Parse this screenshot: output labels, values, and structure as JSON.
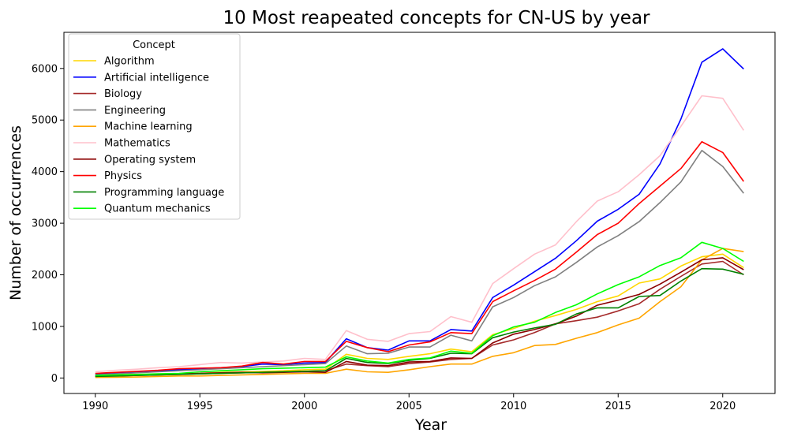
{
  "chart_data": {
    "type": "line",
    "title": "10 Most reapeated concepts for CN-US by year",
    "xlabel": "Year",
    "ylabel": "Number of occurrences",
    "xlim": [
      1988.5,
      2022.5
    ],
    "ylim": [
      -300,
      6700
    ],
    "xticks": [
      1990,
      1995,
      2000,
      2005,
      2010,
      2015,
      2020
    ],
    "yticks": [
      0,
      1000,
      2000,
      3000,
      4000,
      5000,
      6000
    ],
    "grid": false,
    "legend": {
      "title": "Concept",
      "placement": "top-left"
    },
    "x": [
      1990,
      1991,
      1992,
      1993,
      1994,
      1995,
      1996,
      1997,
      1998,
      1999,
      2000,
      2001,
      2002,
      2003,
      2004,
      2005,
      2006,
      2007,
      2008,
      2009,
      2010,
      2011,
      2012,
      2013,
      2014,
      2015,
      2016,
      2017,
      2018,
      2019,
      2020,
      2021
    ],
    "series": [
      {
        "name": "Algorithm",
        "color": "#FFD700",
        "values": [
          40,
          50,
          60,
          70,
          80,
          90,
          110,
          120,
          130,
          140,
          160,
          170,
          460,
          380,
          360,
          420,
          470,
          560,
          510,
          840,
          960,
          1100,
          1210,
          1330,
          1480,
          1590,
          1840,
          1920,
          2170,
          2350,
          2400,
          2140
        ]
      },
      {
        "name": "Artificial intelligence",
        "color": "#0000FF",
        "values": [
          80,
          100,
          120,
          140,
          160,
          180,
          200,
          220,
          270,
          260,
          290,
          300,
          760,
          590,
          540,
          720,
          720,
          940,
          910,
          1560,
          1800,
          2060,
          2320,
          2660,
          3040,
          3270,
          3560,
          4150,
          5020,
          6120,
          6380,
          5990
        ]
      },
      {
        "name": "Biology",
        "color": "#A52A2A",
        "values": [
          30,
          40,
          50,
          60,
          70,
          80,
          90,
          100,
          110,
          120,
          130,
          140,
          270,
          240,
          220,
          280,
          310,
          360,
          380,
          640,
          740,
          880,
          1050,
          1110,
          1180,
          1300,
          1440,
          1720,
          1970,
          2210,
          2260,
          2000
        ]
      },
      {
        "name": "Engineering",
        "color": "#808080",
        "values": [
          60,
          80,
          100,
          120,
          140,
          160,
          180,
          200,
          220,
          240,
          260,
          280,
          620,
          470,
          480,
          600,
          600,
          830,
          720,
          1380,
          1560,
          1790,
          1960,
          2240,
          2540,
          2760,
          3030,
          3400,
          3800,
          4410,
          4100,
          3580
        ]
      },
      {
        "name": "Machine learning",
        "color": "#FFA500",
        "values": [
          10,
          15,
          20,
          30,
          40,
          40,
          50,
          60,
          70,
          80,
          90,
          90,
          170,
          120,
          110,
          160,
          220,
          270,
          270,
          420,
          490,
          630,
          650,
          770,
          880,
          1030,
          1160,
          1480,
          1770,
          2290,
          2510,
          2450
        ]
      },
      {
        "name": "Mathematics",
        "color": "#FFC0CB",
        "values": [
          120,
          150,
          170,
          200,
          220,
          260,
          300,
          290,
          310,
          330,
          380,
          360,
          920,
          750,
          710,
          860,
          900,
          1190,
          1080,
          1830,
          2120,
          2400,
          2580,
          3030,
          3430,
          3610,
          3940,
          4310,
          4880,
          5470,
          5420,
          4800
        ]
      },
      {
        "name": "Operating system",
        "color": "#8B0000",
        "values": [
          40,
          50,
          60,
          70,
          80,
          90,
          100,
          110,
          100,
          110,
          120,
          110,
          320,
          250,
          240,
          310,
          320,
          390,
          380,
          680,
          850,
          940,
          1050,
          1200,
          1410,
          1510,
          1620,
          1820,
          2050,
          2290,
          2330,
          2100
        ]
      },
      {
        "name": "Physics",
        "color": "#FF0000",
        "values": [
          90,
          110,
          130,
          150,
          180,
          190,
          200,
          230,
          300,
          270,
          320,
          320,
          710,
          590,
          510,
          640,
          700,
          880,
          860,
          1480,
          1690,
          1890,
          2110,
          2440,
          2780,
          3000,
          3380,
          3720,
          4060,
          4580,
          4370,
          3810
        ]
      },
      {
        "name": "Programming language",
        "color": "#008000",
        "values": [
          30,
          40,
          50,
          60,
          70,
          80,
          90,
          100,
          110,
          120,
          130,
          140,
          380,
          300,
          280,
          340,
          380,
          480,
          470,
          780,
          890,
          970,
          1040,
          1240,
          1360,
          1360,
          1580,
          1600,
          1880,
          2120,
          2110,
          2010
        ]
      },
      {
        "name": "Quantum mechanics",
        "color": "#00FF00",
        "values": [
          50,
          60,
          70,
          80,
          90,
          120,
          140,
          160,
          180,
          190,
          200,
          210,
          410,
          330,
          290,
          360,
          390,
          520,
          480,
          820,
          990,
          1080,
          1270,
          1420,
          1630,
          1810,
          1960,
          2180,
          2330,
          2630,
          2510,
          2260
        ]
      }
    ]
  }
}
